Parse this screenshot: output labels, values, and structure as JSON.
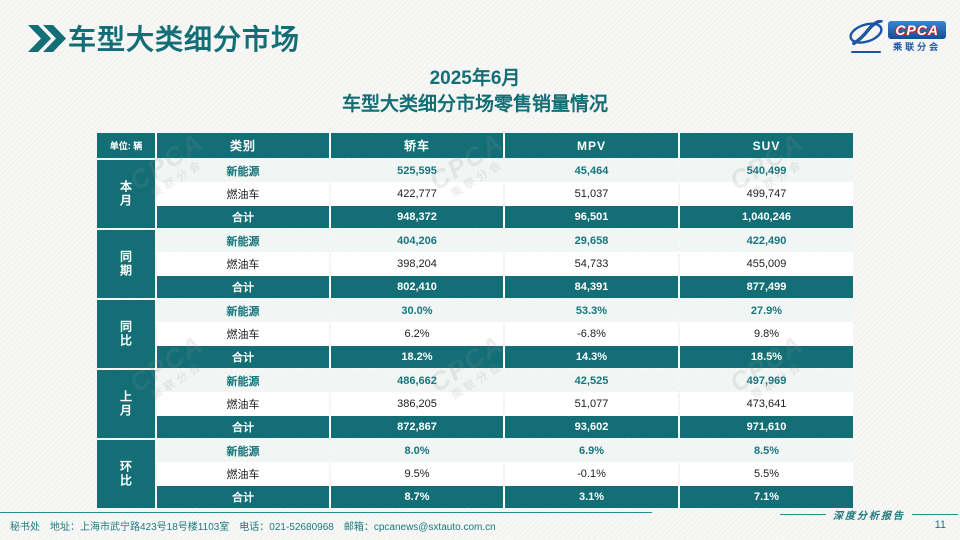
{
  "page": {
    "title": "车型大类细分市场",
    "subtitle_line1": "2025年6月",
    "subtitle_line2": "车型大类细分市场零售销量情况",
    "page_number": "11",
    "footer_left": "秘书处　地址：上海市武宁路423号18号楼1103室　电话：021-52680968　邮箱：cpcanews@sxtauto.com.cn",
    "footer_right_label": "深度分析报告"
  },
  "logo": {
    "box_text": "CPCA",
    "sub_text": "乘联分会"
  },
  "colors": {
    "accent_teal": "#136e75",
    "footer_teal": "#1d7a80",
    "logo_blue": "#1c55a5",
    "ev_row_bg": "#f1f5f4",
    "fuel_row_bg": "#ffffff"
  },
  "watermark": {
    "big": "CPCA",
    "small": "乘联分会"
  },
  "table": {
    "unit_label": "单位: 辆",
    "columns": [
      "类别",
      "轿车",
      "MPV",
      "SUV"
    ],
    "groups": [
      {
        "label": "本月",
        "rows": [
          {
            "name": "新能源",
            "style": "ev",
            "values": [
              "525,595",
              "45,464",
              "540,499"
            ]
          },
          {
            "name": "燃油车",
            "style": "fuel",
            "values": [
              "422,777",
              "51,037",
              "499,747"
            ]
          },
          {
            "name": "合计",
            "style": "total",
            "values": [
              "948,372",
              "96,501",
              "1,040,246"
            ]
          }
        ]
      },
      {
        "label": "同期",
        "rows": [
          {
            "name": "新能源",
            "style": "ev",
            "values": [
              "404,206",
              "29,658",
              "422,490"
            ]
          },
          {
            "name": "燃油车",
            "style": "fuel",
            "values": [
              "398,204",
              "54,733",
              "455,009"
            ]
          },
          {
            "name": "合计",
            "style": "total",
            "values": [
              "802,410",
              "84,391",
              "877,499"
            ]
          }
        ]
      },
      {
        "label": "同比",
        "rows": [
          {
            "name": "新能源",
            "style": "ev",
            "values": [
              "30.0%",
              "53.3%",
              "27.9%"
            ]
          },
          {
            "name": "燃油车",
            "style": "fuel",
            "values": [
              "6.2%",
              "-6.8%",
              "9.8%"
            ]
          },
          {
            "name": "合计",
            "style": "total",
            "values": [
              "18.2%",
              "14.3%",
              "18.5%"
            ]
          }
        ]
      },
      {
        "label": "上月",
        "rows": [
          {
            "name": "新能源",
            "style": "ev",
            "values": [
              "486,662",
              "42,525",
              "497,969"
            ]
          },
          {
            "name": "燃油车",
            "style": "fuel",
            "values": [
              "386,205",
              "51,077",
              "473,641"
            ]
          },
          {
            "name": "合计",
            "style": "total",
            "values": [
              "872,867",
              "93,602",
              "971,610"
            ]
          }
        ]
      },
      {
        "label": "环比",
        "rows": [
          {
            "name": "新能源",
            "style": "ev",
            "values": [
              "8.0%",
              "6.9%",
              "8.5%"
            ]
          },
          {
            "name": "燃油车",
            "style": "fuel",
            "values": [
              "9.5%",
              "-0.1%",
              "5.5%"
            ]
          },
          {
            "name": "合计",
            "style": "total",
            "values": [
              "8.7%",
              "3.1%",
              "7.1%"
            ]
          }
        ]
      }
    ]
  }
}
